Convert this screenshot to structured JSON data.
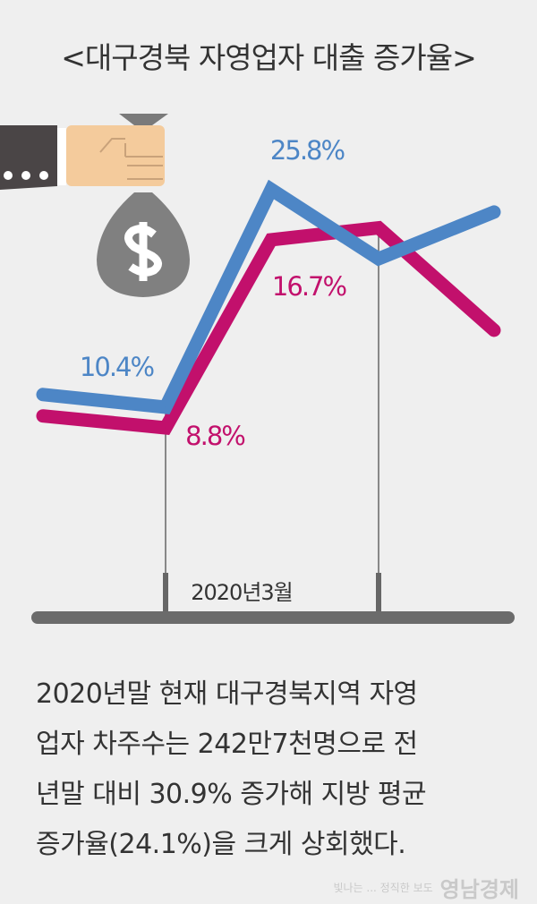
{
  "title": "<대구경북 자영업자 대출 증가율>",
  "chart_data": {
    "type": "line",
    "title": "<대구경북 자영업자 대출 증가율>",
    "categories": [
      "",
      "2020년3월",
      "",
      "",
      ""
    ],
    "series": [
      {
        "name": "blue",
        "color": "#4d86c6",
        "values": [
          11.3,
          10.4,
          25.8,
          20.9,
          24.2
        ],
        "labels": [
          "",
          "10.4%",
          "25.8%",
          "",
          ""
        ]
      },
      {
        "name": "magenta",
        "color": "#c2106c",
        "values": [
          9.3,
          8.8,
          16.7,
          17.2,
          12.9
        ],
        "labels": [
          "",
          "8.8%",
          "16.7%",
          "",
          ""
        ]
      }
    ],
    "annotation": "2020년3월",
    "xlabel": "",
    "ylabel": "",
    "grid": false
  },
  "caption": [
    "2020년말 현재 대구경북지역 자영",
    "업자 차주수는 242만7천명으로 전",
    "년말 대비 30.9% 증가해 지방 평균",
    "증가율(24.1%)을 크게 상회했다."
  ],
  "watermark": {
    "tagline": "빛나는 ... 정직한 보도",
    "name": "영남경제"
  }
}
